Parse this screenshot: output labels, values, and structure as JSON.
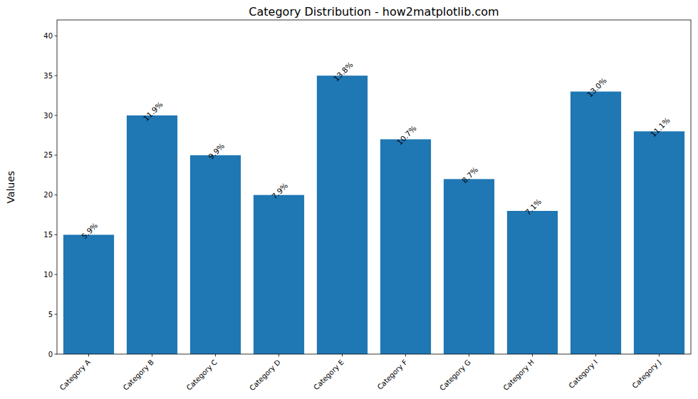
{
  "chart_data": {
    "type": "bar",
    "title": "Category Distribution - how2matplotlib.com",
    "y_label": "Values",
    "categories": [
      "Category A",
      "Category B",
      "Category C",
      "Category D",
      "Category E",
      "Category F",
      "Category G",
      "Category H",
      "Category I",
      "Category J"
    ],
    "values": [
      15,
      30,
      25,
      20,
      35,
      27,
      22,
      18,
      33,
      28
    ],
    "annotations": [
      "5.9%",
      "11.9%",
      "9.9%",
      "7.9%",
      "13.8%",
      "10.7%",
      "8.7%",
      "7.1%",
      "13.0%",
      "11.1%"
    ],
    "color": "#1f77b4",
    "ylim": [
      0,
      42
    ],
    "yticks": [
      0,
      5,
      10,
      15,
      20,
      25,
      30,
      35,
      40
    ],
    "grid": false
  }
}
